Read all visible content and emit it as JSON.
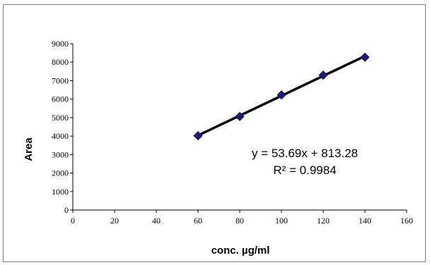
{
  "chart_data": {
    "type": "scatter",
    "title": "",
    "xlabel": "conc. µg/ml",
    "ylabel": "Area",
    "xlim": [
      0,
      160
    ],
    "ylim": [
      0,
      9000
    ],
    "x_ticks": [
      0,
      20,
      40,
      60,
      80,
      100,
      120,
      140,
      160
    ],
    "y_ticks": [
      0,
      1000,
      2000,
      3000,
      4000,
      5000,
      6000,
      7000,
      8000,
      9000
    ],
    "grid": false,
    "series": [
      {
        "x": [
          60,
          80,
          100,
          120,
          140
        ],
        "y": [
          4020,
          5060,
          6230,
          7300,
          8270
        ],
        "marker": "diamond",
        "marker_color": "#1a1a7a"
      }
    ],
    "trendline": {
      "type": "linear",
      "slope": 53.69,
      "intercept": 813.28,
      "x_range": [
        60,
        140
      ],
      "color": "#000000"
    },
    "annotations": {
      "equation": "y = 53.69x + 813.28",
      "r_squared": "R² = 0.9984"
    }
  }
}
